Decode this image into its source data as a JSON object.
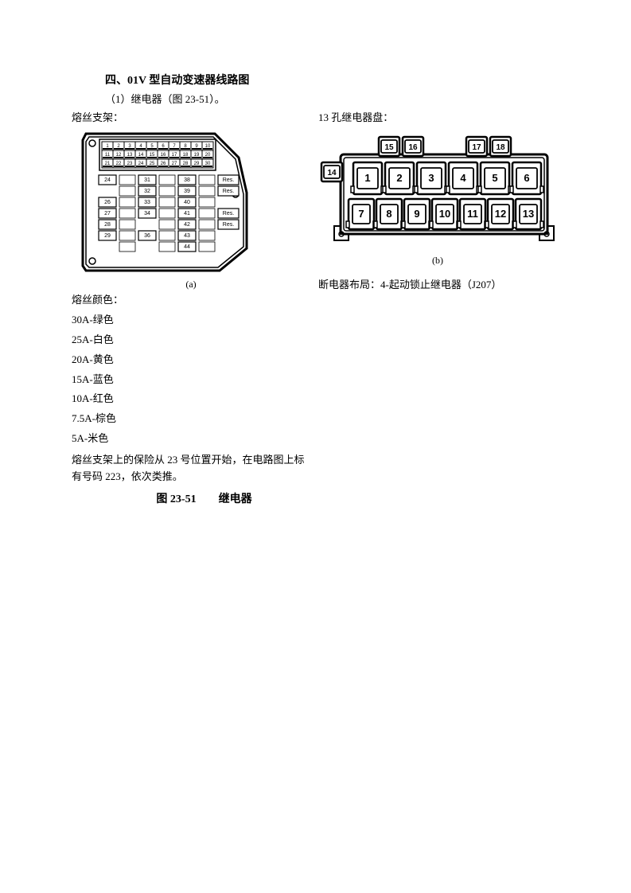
{
  "title": "四、01V 型自动变速器线路图",
  "subtitle": "（1）继电器（图 23-51）。",
  "left": {
    "label": "熔丝支架：",
    "caption": "(a)",
    "fuse_rows_top": [
      [
        "1",
        "2",
        "3",
        "4",
        "5",
        "6",
        "7",
        "8",
        "9",
        "10"
      ],
      [
        "11",
        "12",
        "13",
        "14",
        "15",
        "16",
        "17",
        "18",
        "19",
        "20"
      ],
      [
        "21",
        "22",
        "23",
        "24",
        "25",
        "26",
        "27",
        "28",
        "29",
        "30"
      ]
    ],
    "fuse_rows_mid": [
      [
        "24",
        "",
        "31",
        "",
        "38",
        "",
        "Res."
      ],
      [
        "",
        "",
        "32",
        "",
        "39",
        "",
        "Res."
      ],
      [
        "26",
        "",
        "33",
        "",
        "40",
        "",
        ""
      ],
      [
        "27",
        "",
        "34",
        "",
        "41",
        "",
        "Res."
      ],
      [
        "28",
        "",
        "",
        "",
        "42",
        "",
        "Res."
      ],
      [
        "29",
        "",
        "36",
        "",
        "43",
        "",
        ""
      ],
      [
        "",
        "",
        "",
        "",
        "44",
        "",
        ""
      ]
    ],
    "colors_label": "熔丝颜色：",
    "colors": [
      "30A-绿色",
      "25A-白色",
      "20A-黄色",
      "15A-蓝色",
      "10A-红色",
      "7.5A-棕色",
      "5A-米色"
    ],
    "note1": "熔丝支架上的保险从 23 号位置开始，在电路图上标",
    "note2": "有号码 223，依次类推。"
  },
  "right": {
    "label": "13 孔继电器盘：",
    "caption": "(b)",
    "relay_top": [
      "15",
      "16",
      "17",
      "18"
    ],
    "relay_side": "14",
    "relay_row1": [
      "1",
      "2",
      "3",
      "4",
      "5",
      "6"
    ],
    "relay_row2": [
      "7",
      "8",
      "9",
      "10",
      "11",
      "12",
      "13"
    ],
    "layout_label": "断电器布局：4-起动锁止继电器（J207）"
  },
  "figure_title": "图 23-51　　继电器",
  "style": {
    "stroke": "#000000",
    "fill": "#ffffff",
    "stroke_width": 2
  }
}
